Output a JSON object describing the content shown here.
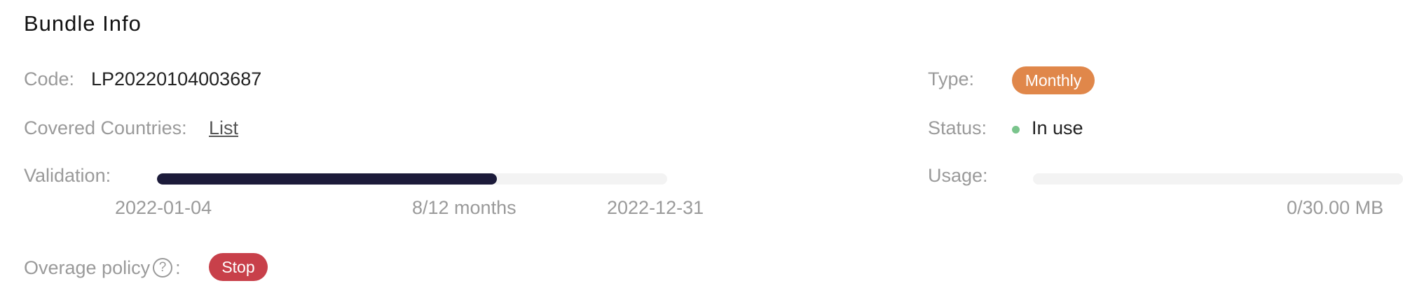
{
  "section": {
    "title": "Bundle Info"
  },
  "code": {
    "label": "Code:",
    "value": "LP20220104003687"
  },
  "countries": {
    "label": "Covered Countries:",
    "link": "List"
  },
  "validation": {
    "label": "Validation:",
    "start": "2022-01-04",
    "elapsed": "8/12 months",
    "end": "2022-12-31",
    "progress_fraction": 0.6667
  },
  "overage": {
    "label_prefix": "Overage policy",
    "label_suffix": ":",
    "help_icon_text": "?",
    "badge": "Stop",
    "badge_color": "#c8404a"
  },
  "type": {
    "label": "Type:",
    "badge": "Monthly",
    "badge_color": "#e0874a"
  },
  "status": {
    "label": "Status:",
    "value": "In use",
    "dot_color": "#7ac48c"
  },
  "usage": {
    "label": "Usage:",
    "value": "0/30.00 MB",
    "progress_fraction": 0
  },
  "colors": {
    "progress_fill": "#1c1b3a",
    "track": "#f3f3f3"
  },
  "icons": {
    "help": "question-circle-icon",
    "status": "status-dot-icon"
  }
}
